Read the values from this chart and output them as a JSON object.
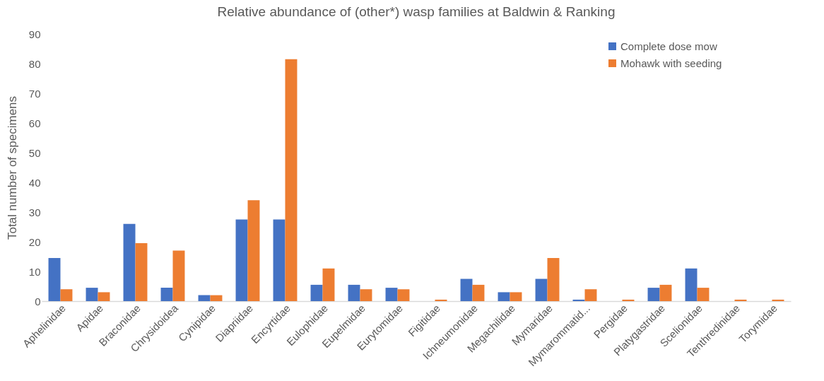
{
  "chart_data": {
    "type": "bar",
    "title": "Relative abundance of (other*) wasp families at Baldwin & Ranking",
    "ylabel": "Total number of specimens",
    "categories": [
      "Aphelinidae",
      "Apidae",
      "Braconidae",
      "Chrysidoidea",
      "Cynipidae",
      "Diapriidae",
      "Encyrtidae",
      "Eulophidae",
      "Eupelmidae",
      "Eurytomidae",
      "Figitidae",
      "Ichneumonidae",
      "Megachilidae",
      "Mymaridae",
      "Mymarommatid...",
      "Pergidae",
      "Platygastridae",
      "Scelionidae",
      "Tenthredinidae",
      "Torymidae"
    ],
    "series": [
      {
        "name": "Complete dose mow",
        "color": "#4472c4",
        "values": [
          14.5,
          4.5,
          26,
          4.5,
          2,
          27.5,
          27.5,
          5.5,
          5.5,
          4.5,
          0,
          7.5,
          3,
          7.5,
          0.5,
          0,
          4.5,
          11,
          0,
          0
        ]
      },
      {
        "name": "Mohawk with seeding",
        "color": "#ed7d31",
        "values": [
          4,
          3,
          19.5,
          17,
          2,
          34,
          81.5,
          11,
          4,
          4,
          0.5,
          5.5,
          3,
          14.5,
          4,
          0.5,
          5.5,
          4.5,
          0.5,
          0.5
        ]
      }
    ],
    "ylim": [
      0,
      90
    ],
    "yticks": [
      0,
      10,
      20,
      30,
      40,
      50,
      60,
      70,
      80,
      90
    ],
    "grid": false,
    "legend": "top right"
  }
}
